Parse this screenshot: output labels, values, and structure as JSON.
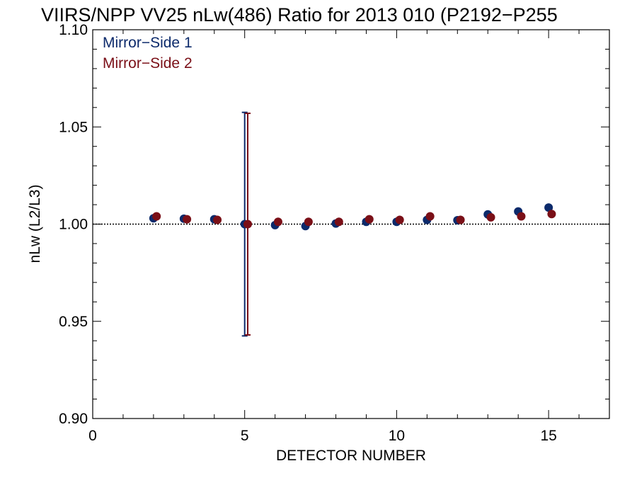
{
  "chart_data": {
    "type": "scatter",
    "title": "VIIRS/NPP VV25 nLw(486) Ratio for 2013 010 (P2192−P255",
    "xlabel": "DETECTOR NUMBER",
    "ylabel": "nLw (L2/L3)",
    "xlim": [
      0,
      17
    ],
    "ylim": [
      0.9,
      1.1
    ],
    "x_ticks": [
      0,
      5,
      10,
      15
    ],
    "x_tick_labels": [
      "0",
      "5",
      "10",
      "15"
    ],
    "y_ticks": [
      0.9,
      0.95,
      1.0,
      1.05,
      1.1
    ],
    "y_tick_labels": [
      "0.90",
      "0.95",
      "1.00",
      "1.05",
      "1.10"
    ],
    "reference_line": 1.0,
    "legend_position": "top-left",
    "series": [
      {
        "name": "Mirror−Side 1",
        "color": "#0c2a6b",
        "x": [
          2,
          3,
          4,
          5,
          6,
          7,
          8,
          9,
          10,
          11,
          12,
          13,
          14,
          15
        ],
        "y": [
          1.003,
          1.0028,
          1.0025,
          1.0,
          0.9995,
          0.999,
          1.0003,
          1.0012,
          1.0012,
          1.0022,
          1.002,
          1.005,
          1.0065,
          1.0085
        ],
        "error_bars": [
          {
            "x": 5,
            "low": 0.9425,
            "high": 1.0575
          }
        ]
      },
      {
        "name": "Mirror−Side 2",
        "color": "#7a0f17",
        "x": [
          2.1,
          3.1,
          4.1,
          5.1,
          6.1,
          7.1,
          8.1,
          9.1,
          10.1,
          11.1,
          12.1,
          13.1,
          14.1,
          15.1
        ],
        "y": [
          1.004,
          1.0025,
          1.0022,
          1.0,
          1.0012,
          1.0012,
          1.0012,
          1.0025,
          1.0022,
          1.004,
          1.0022,
          1.0035,
          1.004,
          1.0052
        ],
        "error_bars": [
          {
            "x": 5.1,
            "low": 0.943,
            "high": 1.057
          }
        ]
      }
    ]
  }
}
